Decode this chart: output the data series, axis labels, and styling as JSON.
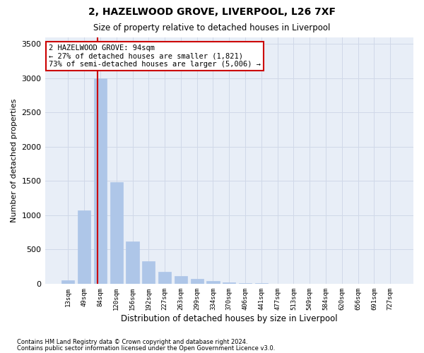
{
  "title1": "2, HAZELWOOD GROVE, LIVERPOOL, L26 7XF",
  "title2": "Size of property relative to detached houses in Liverpool",
  "xlabel": "Distribution of detached houses by size in Liverpool",
  "ylabel": "Number of detached properties",
  "categories": [
    "13sqm",
    "49sqm",
    "84sqm",
    "120sqm",
    "156sqm",
    "192sqm",
    "227sqm",
    "263sqm",
    "299sqm",
    "334sqm",
    "370sqm",
    "406sqm",
    "441sqm",
    "477sqm",
    "513sqm",
    "549sqm",
    "584sqm",
    "620sqm",
    "656sqm",
    "691sqm",
    "727sqm"
  ],
  "values": [
    50,
    1070,
    3000,
    1480,
    620,
    330,
    175,
    110,
    75,
    40,
    20,
    10,
    5,
    3,
    2,
    1,
    1,
    0,
    0,
    0,
    0
  ],
  "bar_color": "#aec6e8",
  "bar_edgecolor": "#aec6e8",
  "grid_color": "#d0d8e8",
  "background_color": "#e8eef7",
  "vline_color": "#cc0000",
  "annotation_text": "2 HAZELWOOD GROVE: 94sqm\n← 27% of detached houses are smaller (1,821)\n73% of semi-detached houses are larger (5,006) →",
  "annotation_box_edgecolor": "#cc0000",
  "ylim": [
    0,
    3600
  ],
  "yticks": [
    0,
    500,
    1000,
    1500,
    2000,
    2500,
    3000,
    3500
  ],
  "footnote1": "Contains HM Land Registry data © Crown copyright and database right 2024.",
  "footnote2": "Contains public sector information licensed under the Open Government Licence v3.0."
}
